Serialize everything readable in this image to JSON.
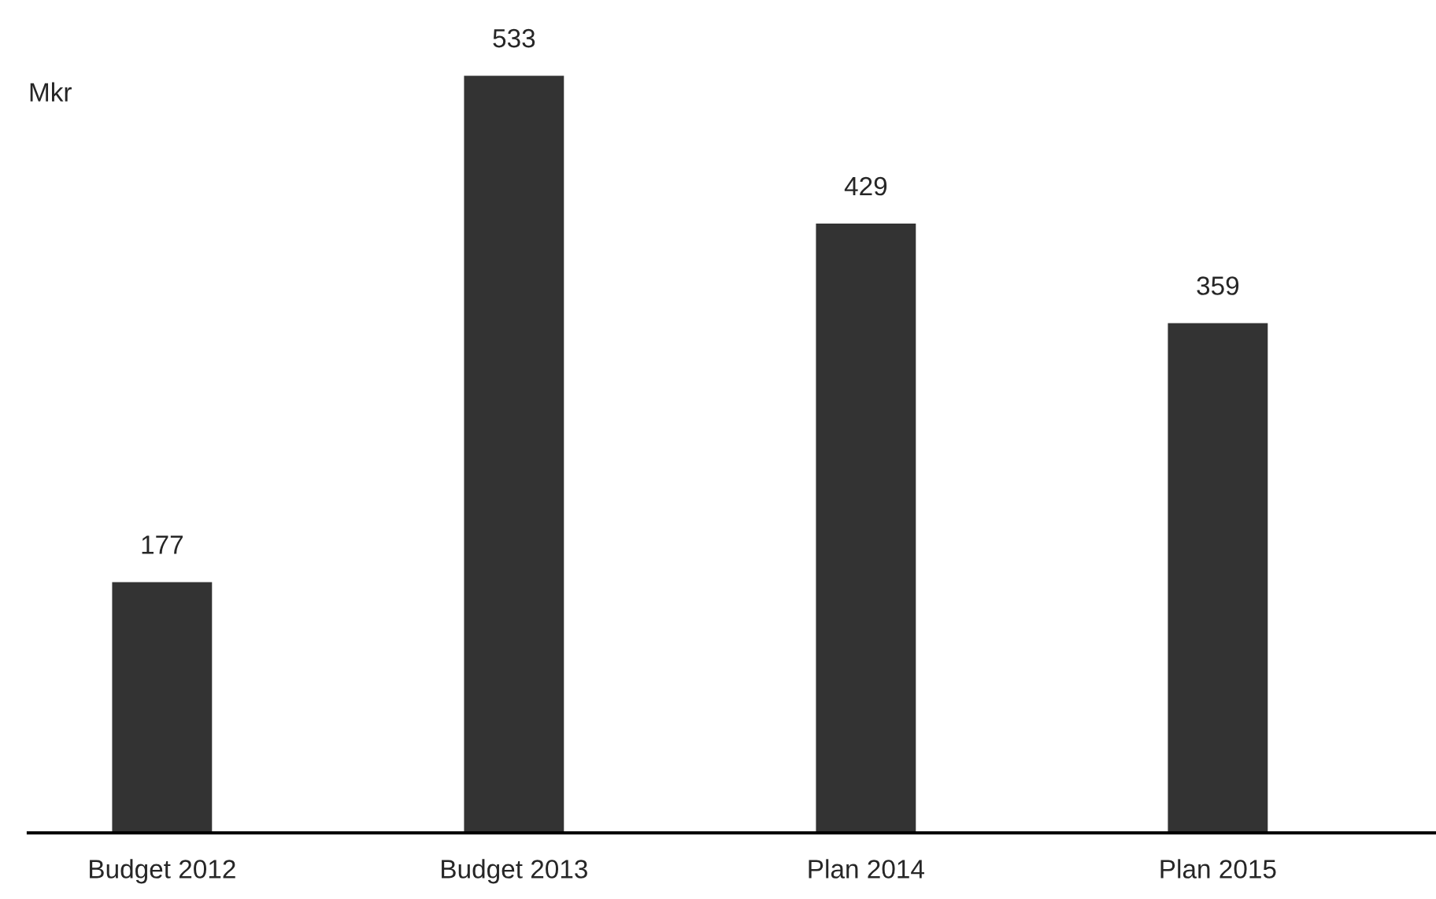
{
  "chart_data": {
    "type": "bar",
    "ylabel": "Mkr",
    "categories": [
      "Budget 2012",
      "Budget 2013",
      "Plan 2014",
      "Plan 2015"
    ],
    "values": [
      177,
      533,
      429,
      359
    ],
    "color": "#333333",
    "data_labels": true,
    "grid": false,
    "legend": false,
    "tick_labels": "x"
  }
}
